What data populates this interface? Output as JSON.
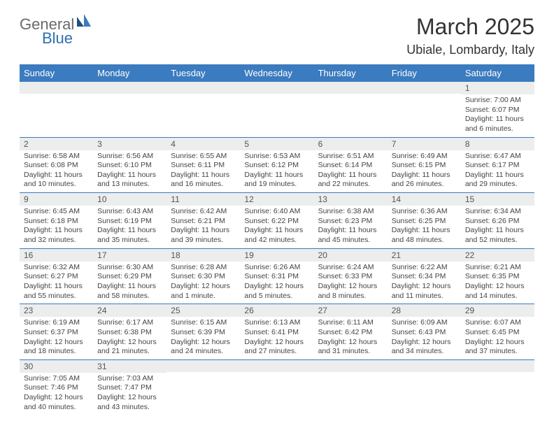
{
  "logo": {
    "text1": "General",
    "text2": "Blue"
  },
  "header": {
    "month_title": "March 2025",
    "location": "Ubiale, Lombardy, Italy"
  },
  "weekday_header": {
    "bg": "#3b7bbf",
    "fg": "#ffffff",
    "days": [
      "Sunday",
      "Monday",
      "Tuesday",
      "Wednesday",
      "Thursday",
      "Friday",
      "Saturday"
    ]
  },
  "colors": {
    "divider": "#3b7bbf",
    "daynum_bg": "#eceded",
    "text": "#444444"
  },
  "weeks": [
    [
      null,
      null,
      null,
      null,
      null,
      null,
      {
        "n": "1",
        "sr": "Sunrise: 7:00 AM",
        "ss": "Sunset: 6:07 PM",
        "dl": "Daylight: 11 hours and 6 minutes."
      }
    ],
    [
      {
        "n": "2",
        "sr": "Sunrise: 6:58 AM",
        "ss": "Sunset: 6:08 PM",
        "dl": "Daylight: 11 hours and 10 minutes."
      },
      {
        "n": "3",
        "sr": "Sunrise: 6:56 AM",
        "ss": "Sunset: 6:10 PM",
        "dl": "Daylight: 11 hours and 13 minutes."
      },
      {
        "n": "4",
        "sr": "Sunrise: 6:55 AM",
        "ss": "Sunset: 6:11 PM",
        "dl": "Daylight: 11 hours and 16 minutes."
      },
      {
        "n": "5",
        "sr": "Sunrise: 6:53 AM",
        "ss": "Sunset: 6:12 PM",
        "dl": "Daylight: 11 hours and 19 minutes."
      },
      {
        "n": "6",
        "sr": "Sunrise: 6:51 AM",
        "ss": "Sunset: 6:14 PM",
        "dl": "Daylight: 11 hours and 22 minutes."
      },
      {
        "n": "7",
        "sr": "Sunrise: 6:49 AM",
        "ss": "Sunset: 6:15 PM",
        "dl": "Daylight: 11 hours and 26 minutes."
      },
      {
        "n": "8",
        "sr": "Sunrise: 6:47 AM",
        "ss": "Sunset: 6:17 PM",
        "dl": "Daylight: 11 hours and 29 minutes."
      }
    ],
    [
      {
        "n": "9",
        "sr": "Sunrise: 6:45 AM",
        "ss": "Sunset: 6:18 PM",
        "dl": "Daylight: 11 hours and 32 minutes."
      },
      {
        "n": "10",
        "sr": "Sunrise: 6:43 AM",
        "ss": "Sunset: 6:19 PM",
        "dl": "Daylight: 11 hours and 35 minutes."
      },
      {
        "n": "11",
        "sr": "Sunrise: 6:42 AM",
        "ss": "Sunset: 6:21 PM",
        "dl": "Daylight: 11 hours and 39 minutes."
      },
      {
        "n": "12",
        "sr": "Sunrise: 6:40 AM",
        "ss": "Sunset: 6:22 PM",
        "dl": "Daylight: 11 hours and 42 minutes."
      },
      {
        "n": "13",
        "sr": "Sunrise: 6:38 AM",
        "ss": "Sunset: 6:23 PM",
        "dl": "Daylight: 11 hours and 45 minutes."
      },
      {
        "n": "14",
        "sr": "Sunrise: 6:36 AM",
        "ss": "Sunset: 6:25 PM",
        "dl": "Daylight: 11 hours and 48 minutes."
      },
      {
        "n": "15",
        "sr": "Sunrise: 6:34 AM",
        "ss": "Sunset: 6:26 PM",
        "dl": "Daylight: 11 hours and 52 minutes."
      }
    ],
    [
      {
        "n": "16",
        "sr": "Sunrise: 6:32 AM",
        "ss": "Sunset: 6:27 PM",
        "dl": "Daylight: 11 hours and 55 minutes."
      },
      {
        "n": "17",
        "sr": "Sunrise: 6:30 AM",
        "ss": "Sunset: 6:29 PM",
        "dl": "Daylight: 11 hours and 58 minutes."
      },
      {
        "n": "18",
        "sr": "Sunrise: 6:28 AM",
        "ss": "Sunset: 6:30 PM",
        "dl": "Daylight: 12 hours and 1 minute."
      },
      {
        "n": "19",
        "sr": "Sunrise: 6:26 AM",
        "ss": "Sunset: 6:31 PM",
        "dl": "Daylight: 12 hours and 5 minutes."
      },
      {
        "n": "20",
        "sr": "Sunrise: 6:24 AM",
        "ss": "Sunset: 6:33 PM",
        "dl": "Daylight: 12 hours and 8 minutes."
      },
      {
        "n": "21",
        "sr": "Sunrise: 6:22 AM",
        "ss": "Sunset: 6:34 PM",
        "dl": "Daylight: 12 hours and 11 minutes."
      },
      {
        "n": "22",
        "sr": "Sunrise: 6:21 AM",
        "ss": "Sunset: 6:35 PM",
        "dl": "Daylight: 12 hours and 14 minutes."
      }
    ],
    [
      {
        "n": "23",
        "sr": "Sunrise: 6:19 AM",
        "ss": "Sunset: 6:37 PM",
        "dl": "Daylight: 12 hours and 18 minutes."
      },
      {
        "n": "24",
        "sr": "Sunrise: 6:17 AM",
        "ss": "Sunset: 6:38 PM",
        "dl": "Daylight: 12 hours and 21 minutes."
      },
      {
        "n": "25",
        "sr": "Sunrise: 6:15 AM",
        "ss": "Sunset: 6:39 PM",
        "dl": "Daylight: 12 hours and 24 minutes."
      },
      {
        "n": "26",
        "sr": "Sunrise: 6:13 AM",
        "ss": "Sunset: 6:41 PM",
        "dl": "Daylight: 12 hours and 27 minutes."
      },
      {
        "n": "27",
        "sr": "Sunrise: 6:11 AM",
        "ss": "Sunset: 6:42 PM",
        "dl": "Daylight: 12 hours and 31 minutes."
      },
      {
        "n": "28",
        "sr": "Sunrise: 6:09 AM",
        "ss": "Sunset: 6:43 PM",
        "dl": "Daylight: 12 hours and 34 minutes."
      },
      {
        "n": "29",
        "sr": "Sunrise: 6:07 AM",
        "ss": "Sunset: 6:45 PM",
        "dl": "Daylight: 12 hours and 37 minutes."
      }
    ],
    [
      {
        "n": "30",
        "sr": "Sunrise: 7:05 AM",
        "ss": "Sunset: 7:46 PM",
        "dl": "Daylight: 12 hours and 40 minutes."
      },
      {
        "n": "31",
        "sr": "Sunrise: 7:03 AM",
        "ss": "Sunset: 7:47 PM",
        "dl": "Daylight: 12 hours and 43 minutes."
      },
      null,
      null,
      null,
      null,
      null
    ]
  ]
}
